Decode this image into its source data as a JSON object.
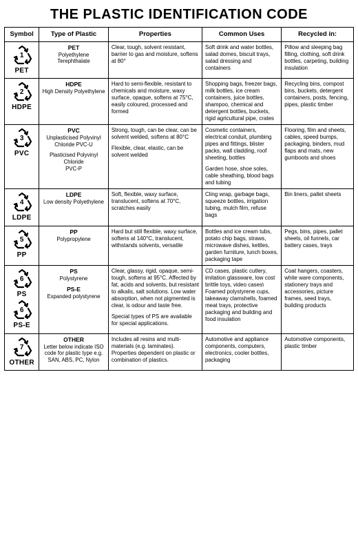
{
  "title": "THE PLASTIC IDENTIFICATION CODE",
  "headers": {
    "symbol": "Symbol",
    "type": "Type of Plastic",
    "properties": "Properties",
    "uses": "Common Uses",
    "recycled": "Recycled in:"
  },
  "rows": [
    {
      "symbols": [
        {
          "num": "1",
          "label": "PET"
        }
      ],
      "type_name": "PET",
      "type_sub": "Polyethylene Terephthalate",
      "properties": "Clear, tough, solvent resistant, barrier to gas and moisture, softens at 80°",
      "uses": "Soft drink and water bottles, salad domes, biscuit trays, salad dressing and containers",
      "recycled": "Pillow and sleeping bag filling, clothing, soft drink bottles, carpeting, building insulation"
    },
    {
      "symbols": [
        {
          "num": "2",
          "label": "HDPE"
        }
      ],
      "type_name": "HDPE",
      "type_sub": "High Density Polyethylene",
      "properties": "Hard to semi-flexible, resistant to chemicals and moisture, waxy surface, opaque, softens at 75°C, easily coloured, processed and formed",
      "uses": "Shopping bags, freezer bags, milk bottles, ice cream containers, juice bottles, shampoo, chemical and detergent bottles, buckets, rigid agricultural pipe, crates",
      "recycled": "Recycling bins, compost bins, buckets, detergent containers, posts, fencing, pipes, plastic timber"
    },
    {
      "symbols": [
        {
          "num": "3",
          "label": "PVC"
        }
      ],
      "type_name": "PVC",
      "type_sub": "Unplasticised Polyvinyl Chloride PVC-U",
      "type_name2": "",
      "type_sub2": "Plasticised Polyvinyl Chloride\n          PVC-P",
      "properties": "Strong, tough, can be clear, can be solvent welded, softens at 80°C",
      "properties2": "Flexible, clear, elastic, can be solvent welded",
      "uses": "Cosmetic containers, electrical conduit, plumbing pipes and fittings, blister packs, wall cladding, roof sheeting, bottles",
      "uses2": "Garden hose, shoe soles, cable sheathing, blood bags and tubing",
      "recycled": "Flooring, film and sheets, cables, speed bumps, packaging, binders, mud flaps and mats, new gumboots and shoes"
    },
    {
      "symbols": [
        {
          "num": "4",
          "label": "LDPE"
        }
      ],
      "type_name": "LDPE",
      "type_sub": "Low density Polyethylene",
      "properties": "Soft, flexible, waxy surface, translucent, softens at 70°C, scratches easily",
      "uses": "Cling wrap, garbage bags, squeeze bottles, irrigation tubing, mulch film, refuse bags",
      "recycled": "Bin liners, pallet sheets"
    },
    {
      "symbols": [
        {
          "num": "5",
          "label": "PP"
        }
      ],
      "type_name": "PP",
      "type_sub": "Polypropylene",
      "properties": "Hard but still flexible, waxy surface, softens at 140°C, translucent, withstands solvents, versatile",
      "uses": "Bottles and ice cream tubs, potato chip bags, straws, microwave dishes, kettles, garden furniture, lunch boxes, packaging tape",
      "recycled": "Pegs, bins, pipes, pallet sheets, oil funnels, car battery cases, trays"
    },
    {
      "symbols": [
        {
          "num": "6",
          "label": "PS"
        },
        {
          "num": "6",
          "label": "PS-E"
        }
      ],
      "type_name": "PS",
      "type_sub": "Polystyrene",
      "type_name2": "PS-E",
      "type_sub2": "Expanded polystyrene",
      "properties": "Clear, glassy, rigid, opaque, semi-tough, softens at 95°C. Affected by fat, acids and solvents, but resistant to alkalis, salt solutions.  Low water absorption, when not pigmented is clear, is odour and taste free.",
      "properties2": "Special types of PS are available for special applications.",
      "uses": "CD cases, plastic cutlery, imitation glassware, low cost brittle toys, video cases\\ Foamed polystyrene cups, takeaway clamshells, foamed meat trays, protective packaging and building and food insulation",
      "recycled": "Coat hangers, coasters, white ware components, stationery trays and accessories, picture frames, seed trays, building products"
    },
    {
      "symbols": [
        {
          "num": "7",
          "label": "OTHER"
        }
      ],
      "type_name": "OTHER",
      "type_sub": "Letter below indicate ISO code for plastic type e.g. SAN, ABS, PC, Nylon",
      "properties": "Includes all resins and multi-materials (e.g. laminates). Properties dependent on plastic or combination of plastics.",
      "uses": "Automotive and appliance components, computers, electronics, cooler bottles, packaging",
      "recycled": "Automotive components, plastic timber"
    }
  ]
}
